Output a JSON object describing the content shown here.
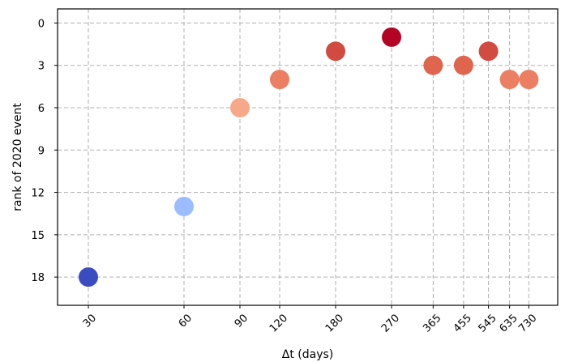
{
  "chart_data": {
    "type": "scatter",
    "title": "",
    "xlabel": "Δt (days)",
    "ylabel": "rank of 2020 event",
    "x_scale": "log",
    "xlim": [
      24,
      900
    ],
    "ylim": [
      20,
      -1
    ],
    "y_inverted": true,
    "x_ticks": [
      30,
      60,
      90,
      120,
      180,
      270,
      365,
      455,
      545,
      635,
      730
    ],
    "x_tick_labels": [
      "30",
      "60",
      "90",
      "120",
      "180",
      "270",
      "365",
      "455",
      "545",
      "635",
      "730"
    ],
    "y_ticks": [
      0,
      3,
      6,
      9,
      12,
      15,
      18
    ],
    "y_tick_labels": [
      "0",
      "3",
      "6",
      "9",
      "12",
      "15",
      "18"
    ],
    "grid": true,
    "colormap": "coolwarm (color encodes rank: high rank = red, low rank = blue)",
    "points": [
      {
        "x": 30,
        "y": 18,
        "color": "#3b4cc0"
      },
      {
        "x": 60,
        "y": 13,
        "color": "#9bbcff"
      },
      {
        "x": 90,
        "y": 6,
        "color": "#f7a889"
      },
      {
        "x": 120,
        "y": 4,
        "color": "#ec7f63"
      },
      {
        "x": 180,
        "y": 2,
        "color": "#d24b40"
      },
      {
        "x": 270,
        "y": 1,
        "color": "#b40426"
      },
      {
        "x": 365,
        "y": 3,
        "color": "#e0654f"
      },
      {
        "x": 455,
        "y": 3,
        "color": "#e0654f"
      },
      {
        "x": 545,
        "y": 2,
        "color": "#d24b40"
      },
      {
        "x": 635,
        "y": 4,
        "color": "#ec7f63"
      },
      {
        "x": 730,
        "y": 4,
        "color": "#ec7f63"
      }
    ]
  }
}
